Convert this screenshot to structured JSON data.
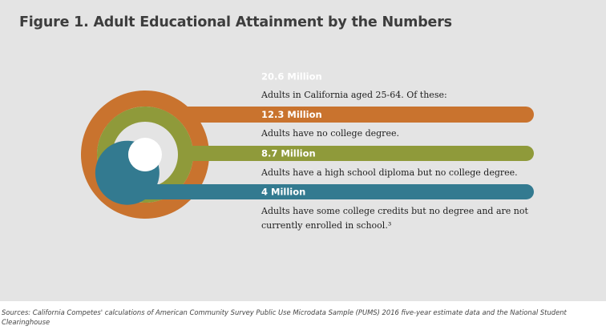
{
  "title": "Figure 1. Adult Educational Attainment by the Numbers",
  "sources": "Sources: California Competes' calculations of American Community Survey Public Use Microdata Sample (PUMS) 2016 five-year estimate data and the National Student Clearinghouse",
  "chart_data": {
    "type": "nested-ring-bars",
    "title": "Figure 1. Adult Educational Attainment by the Numbers",
    "unit": "Million",
    "series": [
      {
        "label": "20.6 Million",
        "value": 20.6,
        "description": [
          "Adults in California aged 25-64. Of these:"
        ],
        "color": "#c8464c"
      },
      {
        "label": "12.3 Million",
        "value": 12.3,
        "description": [
          "Adults have no college degree."
        ],
        "color": "#c9732e"
      },
      {
        "label": "8.7 Million",
        "value": 8.7,
        "description": [
          "Adults have a high school diploma but no college degree."
        ],
        "color": "#8f9a3a"
      },
      {
        "label": "4 Million",
        "value": 4,
        "description": [
          "Adults have some college credits but no degree and are not",
          "currently enrolled in school.³"
        ],
        "color": "#337a90"
      }
    ]
  }
}
